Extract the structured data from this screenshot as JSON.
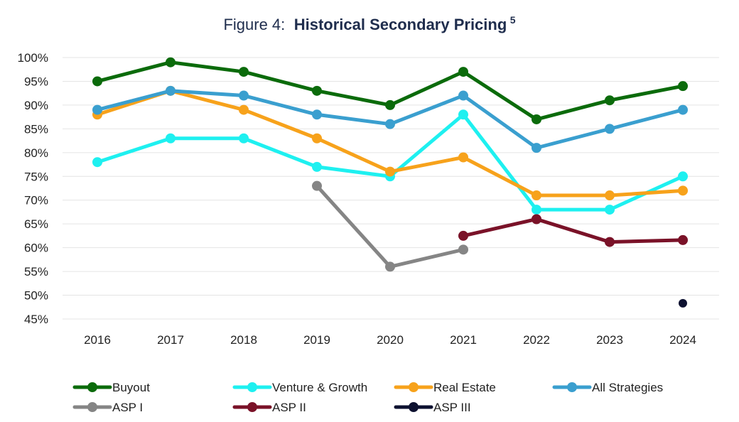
{
  "chart_data": {
    "type": "line",
    "title_prefix": "Figure 4:",
    "title_main": "Historical Secondary Pricing",
    "title_superscript": "5",
    "categories": [
      "2016",
      "2017",
      "2018",
      "2019",
      "2020",
      "2021",
      "2022",
      "2023",
      "2024"
    ],
    "ylim": [
      45,
      100
    ],
    "yticks": [
      45,
      50,
      55,
      60,
      65,
      70,
      75,
      80,
      85,
      90,
      95,
      100
    ],
    "ytick_labels": [
      "45%",
      "50%",
      "55%",
      "60%",
      "65%",
      "70%",
      "75%",
      "80%",
      "85%",
      "90%",
      "95%",
      "100%"
    ],
    "grid": "horizontal",
    "legend_position": "bottom",
    "series": [
      {
        "name": "Buyout",
        "color": "#0b6b0b",
        "values": [
          95,
          99,
          97,
          93,
          90,
          97,
          87,
          91,
          94
        ]
      },
      {
        "name": "Venture & Growth",
        "color": "#1ef0f0",
        "values": [
          78,
          83,
          83,
          77,
          75,
          88,
          68,
          68,
          75
        ]
      },
      {
        "name": "Real Estate",
        "color": "#f7a21b",
        "values": [
          88,
          93,
          89,
          83,
          76,
          79,
          71,
          71,
          72
        ]
      },
      {
        "name": "All Strategies",
        "color": "#3a9fcf",
        "values": [
          89,
          93,
          92,
          88,
          86,
          92,
          81,
          85,
          89
        ]
      },
      {
        "name": "ASP I",
        "color": "#858585",
        "values": [
          null,
          null,
          null,
          73,
          56,
          59.6,
          null,
          null,
          null
        ]
      },
      {
        "name": "ASP II",
        "color": "#7a1228",
        "values": [
          null,
          null,
          null,
          null,
          null,
          62.5,
          66,
          61.2,
          61.6
        ]
      },
      {
        "name": "ASP III",
        "color": "#0d1130",
        "values": [
          null,
          null,
          null,
          null,
          null,
          null,
          null,
          null,
          48.3
        ]
      }
    ]
  }
}
